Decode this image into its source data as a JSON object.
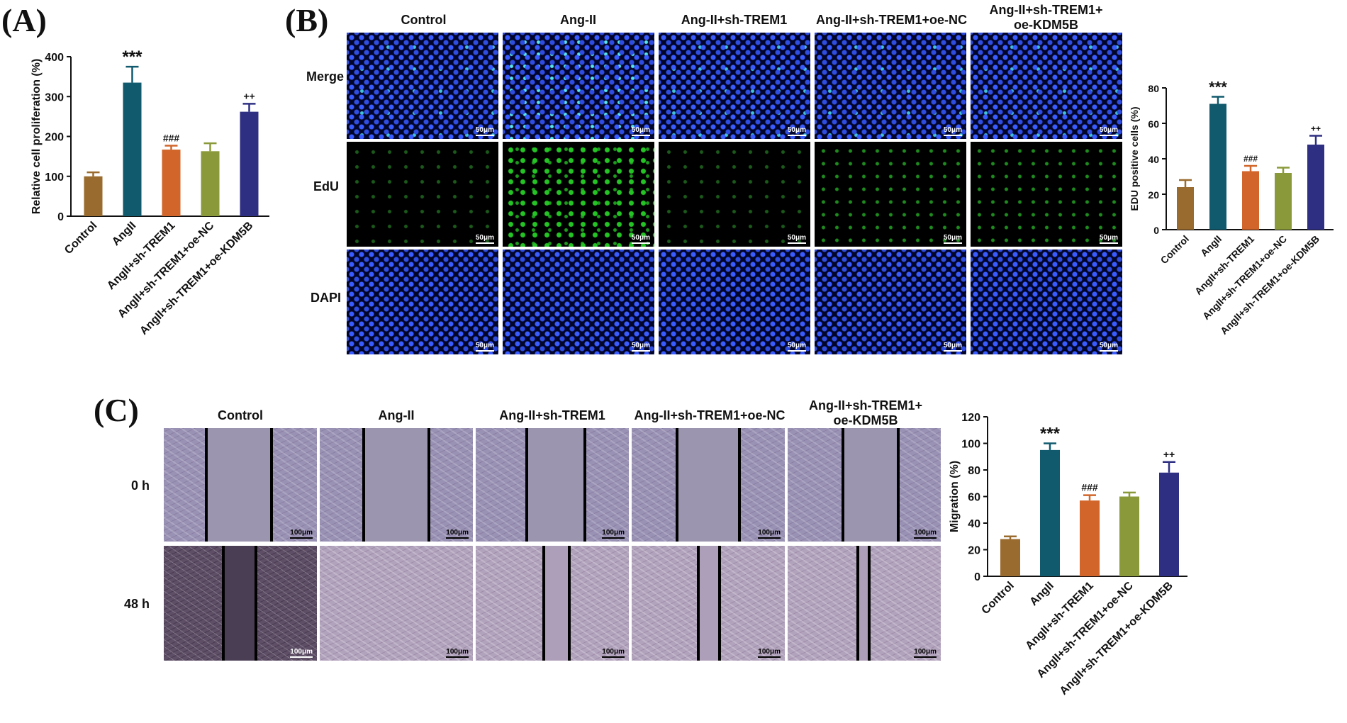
{
  "panels": {
    "a": "(A)",
    "b": "(B)",
    "c": "(C)"
  },
  "charts": {
    "a": {
      "ylabel": "Relative cell proliferation (%)",
      "ticks": [
        "0",
        "100",
        "200",
        "300",
        "400"
      ],
      "categories": [
        "Control",
        "AngII",
        "AngII+sh-TREM1",
        "AngII+sh-TREM1+oe-NC",
        "AngII+sh-TREM1+oe-KDM5B"
      ],
      "sig": [
        "",
        "***",
        "###",
        "",
        "++"
      ]
    },
    "b": {
      "ylabel": "EDU positive cells (%)",
      "ticks": [
        "0",
        "20",
        "40",
        "60",
        "80"
      ],
      "categories": [
        "Control",
        "AngII",
        "AngII+sh-TREM1",
        "AngII+sh-TREM1+oe-NC",
        "AngII+sh-TREM1+oe-KDM5B"
      ],
      "sig": [
        "",
        "***",
        "###",
        "",
        "++"
      ]
    },
    "c": {
      "ylabel": "Migration (%)",
      "ticks": [
        "0",
        "20",
        "40",
        "60",
        "80",
        "100",
        "120"
      ],
      "categories": [
        "Control",
        "AngII",
        "AngII+sh-TREM1",
        "AngII+sh-TREM1+oe-NC",
        "AngII+sh-TREM1+oe-KDM5B"
      ],
      "sig": [
        "",
        "***",
        "###",
        "",
        "++"
      ]
    }
  },
  "chart_data": [
    {
      "type": "bar",
      "title": "",
      "xlabel": "",
      "ylabel": "Relative cell proliferation (%)",
      "categories": [
        "Control",
        "AngII",
        "AngII+sh-TREM1",
        "AngII+sh-TREM1+oe-NC",
        "AngII+sh-TREM1+oe-KDM5B"
      ],
      "values": [
        100,
        335,
        167,
        163,
        262
      ],
      "errors": [
        10,
        40,
        10,
        20,
        20
      ],
      "ylim": [
        0,
        400
      ],
      "colors": [
        "#9a6b2e",
        "#115a6e",
        "#d1652a",
        "#8a9a3a",
        "#2e2f82"
      ]
    },
    {
      "type": "bar",
      "title": "",
      "xlabel": "",
      "ylabel": "EDU positive cells (%)",
      "categories": [
        "Control",
        "AngII",
        "AngII+sh-TREM1",
        "AngII+sh-TREM1+oe-NC",
        "AngII+sh-TREM1+oe-KDM5B"
      ],
      "values": [
        24,
        71,
        33,
        32,
        48
      ],
      "errors": [
        4,
        4,
        3,
        3,
        5
      ],
      "ylim": [
        0,
        80
      ],
      "colors": [
        "#9a6b2e",
        "#115a6e",
        "#d1652a",
        "#8a9a3a",
        "#2e2f82"
      ]
    },
    {
      "type": "bar",
      "title": "",
      "xlabel": "",
      "ylabel": "Migration (%)",
      "categories": [
        "Control",
        "AngII",
        "AngII+sh-TREM1",
        "AngII+sh-TREM1+oe-NC",
        "AngII+sh-TREM1+oe-KDM5B"
      ],
      "values": [
        28,
        95,
        57,
        60,
        78
      ],
      "errors": [
        2,
        5,
        4,
        3,
        8
      ],
      "ylim": [
        0,
        120
      ],
      "colors": [
        "#9a6b2e",
        "#115a6e",
        "#d1652a",
        "#8a9a3a",
        "#2e2f82"
      ]
    }
  ],
  "edu": {
    "columns": [
      "Control",
      "Ang-II",
      "Ang-II+sh-TREM1",
      "Ang-II+sh-TREM1+oe-NC",
      "Ang-II+sh-TREM1+\noe-KDM5B"
    ],
    "rows": [
      "Merge",
      "EdU",
      "DAPI"
    ],
    "scale": "50μm"
  },
  "wound": {
    "columns": [
      "Control",
      "Ang-II",
      "Ang-II+sh-TREM1",
      "Ang-II+sh-TREM1+oe-NC",
      "Ang-II+sh-TREM1+\noe-KDM5B"
    ],
    "rows": [
      "0 h",
      "48 h"
    ],
    "scale": "100μm"
  }
}
